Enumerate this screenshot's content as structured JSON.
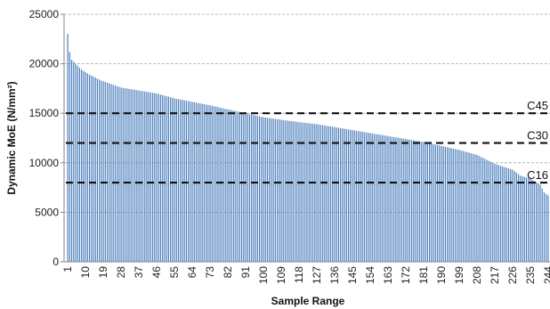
{
  "chart_data": {
    "type": "bar",
    "title": "",
    "xlabel": "Sample Range",
    "ylabel": "Dynamic MoE (N/mm²)",
    "ylim": [
      0,
      25000
    ],
    "yticks": [
      0,
      5000,
      10000,
      15000,
      20000,
      25000
    ],
    "ytick_labels": [
      "0",
      "5000",
      "10000",
      "15000",
      "20000",
      "25000"
    ],
    "x_count": 244,
    "x_tick_labels": [
      "1",
      "10",
      "19",
      "28",
      "37",
      "46",
      "55",
      "64",
      "73",
      "82",
      "91",
      "100",
      "109",
      "118",
      "127",
      "136",
      "145",
      "154",
      "163",
      "172",
      "181",
      "190",
      "199",
      "208",
      "217",
      "226",
      "235",
      "244"
    ],
    "grid": "horizontal-dashed",
    "bar_color": "#4f81bd",
    "series_anchors": [
      [
        1,
        23000
      ],
      [
        2,
        21200
      ],
      [
        3,
        20400
      ],
      [
        5,
        20000
      ],
      [
        8,
        19400
      ],
      [
        12,
        18900
      ],
      [
        18,
        18300
      ],
      [
        28,
        17600
      ],
      [
        37,
        17300
      ],
      [
        46,
        17000
      ],
      [
        55,
        16500
      ],
      [
        64,
        16150
      ],
      [
        73,
        15800
      ],
      [
        82,
        15400
      ],
      [
        91,
        15000
      ],
      [
        100,
        14600
      ],
      [
        109,
        14350
      ],
      [
        118,
        14100
      ],
      [
        127,
        13900
      ],
      [
        136,
        13600
      ],
      [
        145,
        13300
      ],
      [
        154,
        13000
      ],
      [
        163,
        12700
      ],
      [
        172,
        12400
      ],
      [
        181,
        12100
      ],
      [
        190,
        11700
      ],
      [
        199,
        11300
      ],
      [
        208,
        10800
      ],
      [
        217,
        9900
      ],
      [
        226,
        9300
      ],
      [
        230,
        8700
      ],
      [
        235,
        8400
      ],
      [
        240,
        7800
      ],
      [
        242,
        7000
      ],
      [
        244,
        6700
      ]
    ],
    "thresholds": [
      {
        "label": "C45",
        "value": 15000
      },
      {
        "label": "C30",
        "value": 12000
      },
      {
        "label": "C16",
        "value": 8000
      }
    ]
  }
}
